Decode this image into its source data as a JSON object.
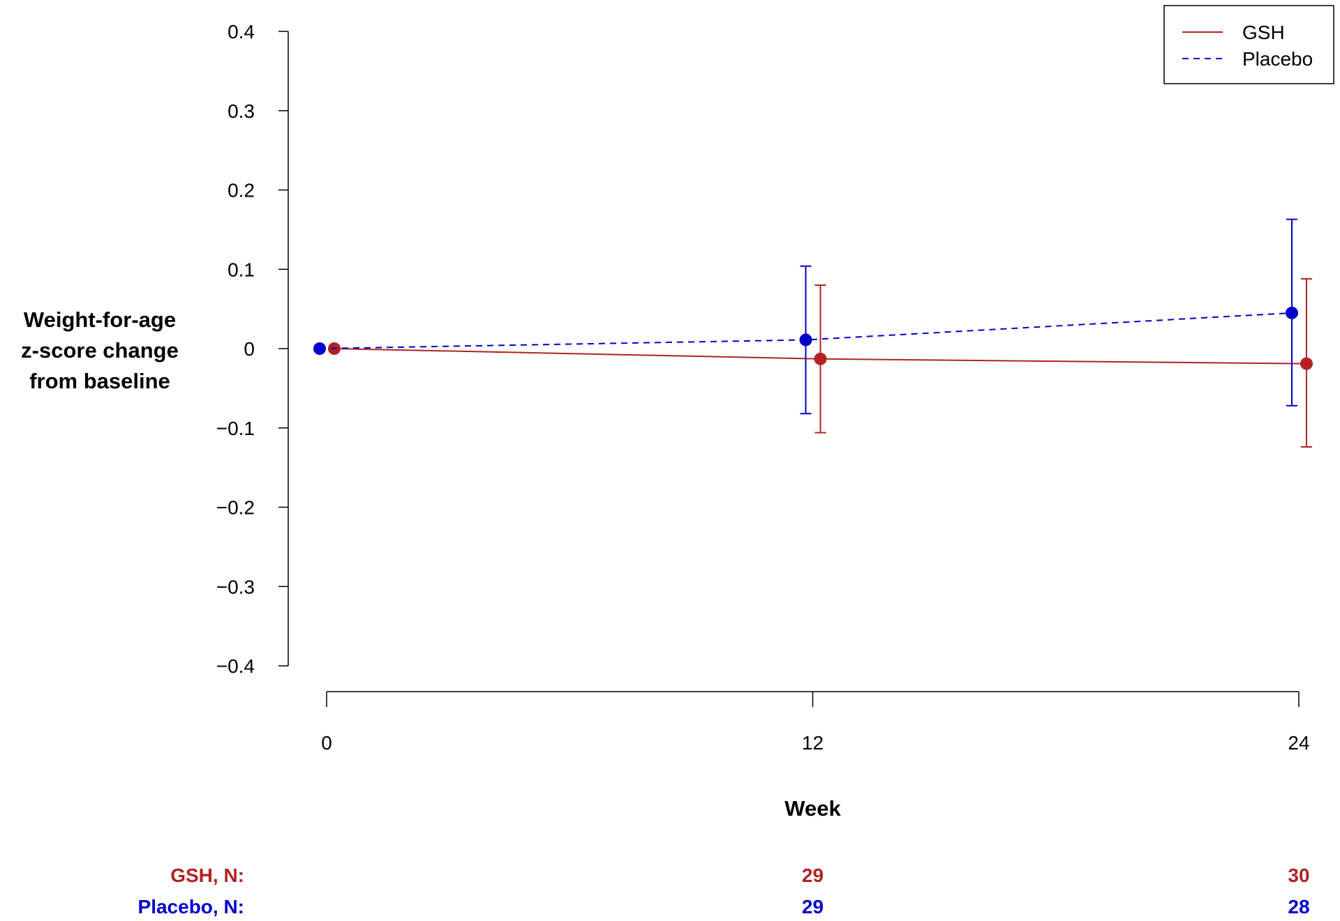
{
  "chart_data": {
    "type": "line",
    "ylabel_lines": [
      "Weight-for-age",
      "z-score change",
      "from baseline"
    ],
    "xlabel": "Week",
    "x": [
      0,
      12,
      24
    ],
    "ylim": [
      -0.4,
      0.4
    ],
    "yticks": [
      0.4,
      0.3,
      0.2,
      0.1,
      0,
      -0.1,
      -0.2,
      -0.3,
      -0.4
    ],
    "ytick_labels": [
      "0.4",
      "0.3",
      "0.2",
      "0.1",
      "0",
      "−0.1",
      "−0.2",
      "−0.3",
      "−0.4"
    ],
    "xtick_labels": [
      "0",
      "12",
      "24"
    ],
    "grid": false,
    "legend_position": "top-right",
    "series": [
      {
        "name": "GSH",
        "color": "#b22222",
        "line_style": "solid",
        "values": [
          0,
          -0.013,
          -0.019
        ],
        "ci_lower": [
          null,
          -0.106,
          -0.124
        ],
        "ci_upper": [
          null,
          0.08,
          0.088
        ]
      },
      {
        "name": "Placebo",
        "color": "#0000cd",
        "line_style": "dashed",
        "values": [
          0,
          0.011,
          0.045
        ],
        "ci_lower": [
          null,
          -0.082,
          -0.072
        ],
        "ci_upper": [
          null,
          0.104,
          0.163
        ]
      }
    ],
    "n_table": {
      "rows": [
        {
          "label": "GSH, N:",
          "color": "#b22222",
          "values": [
            "",
            "29",
            "30"
          ]
        },
        {
          "label": "Placebo, N:",
          "color": "#0000cd",
          "values": [
            "",
            "29",
            "28"
          ]
        }
      ]
    }
  }
}
